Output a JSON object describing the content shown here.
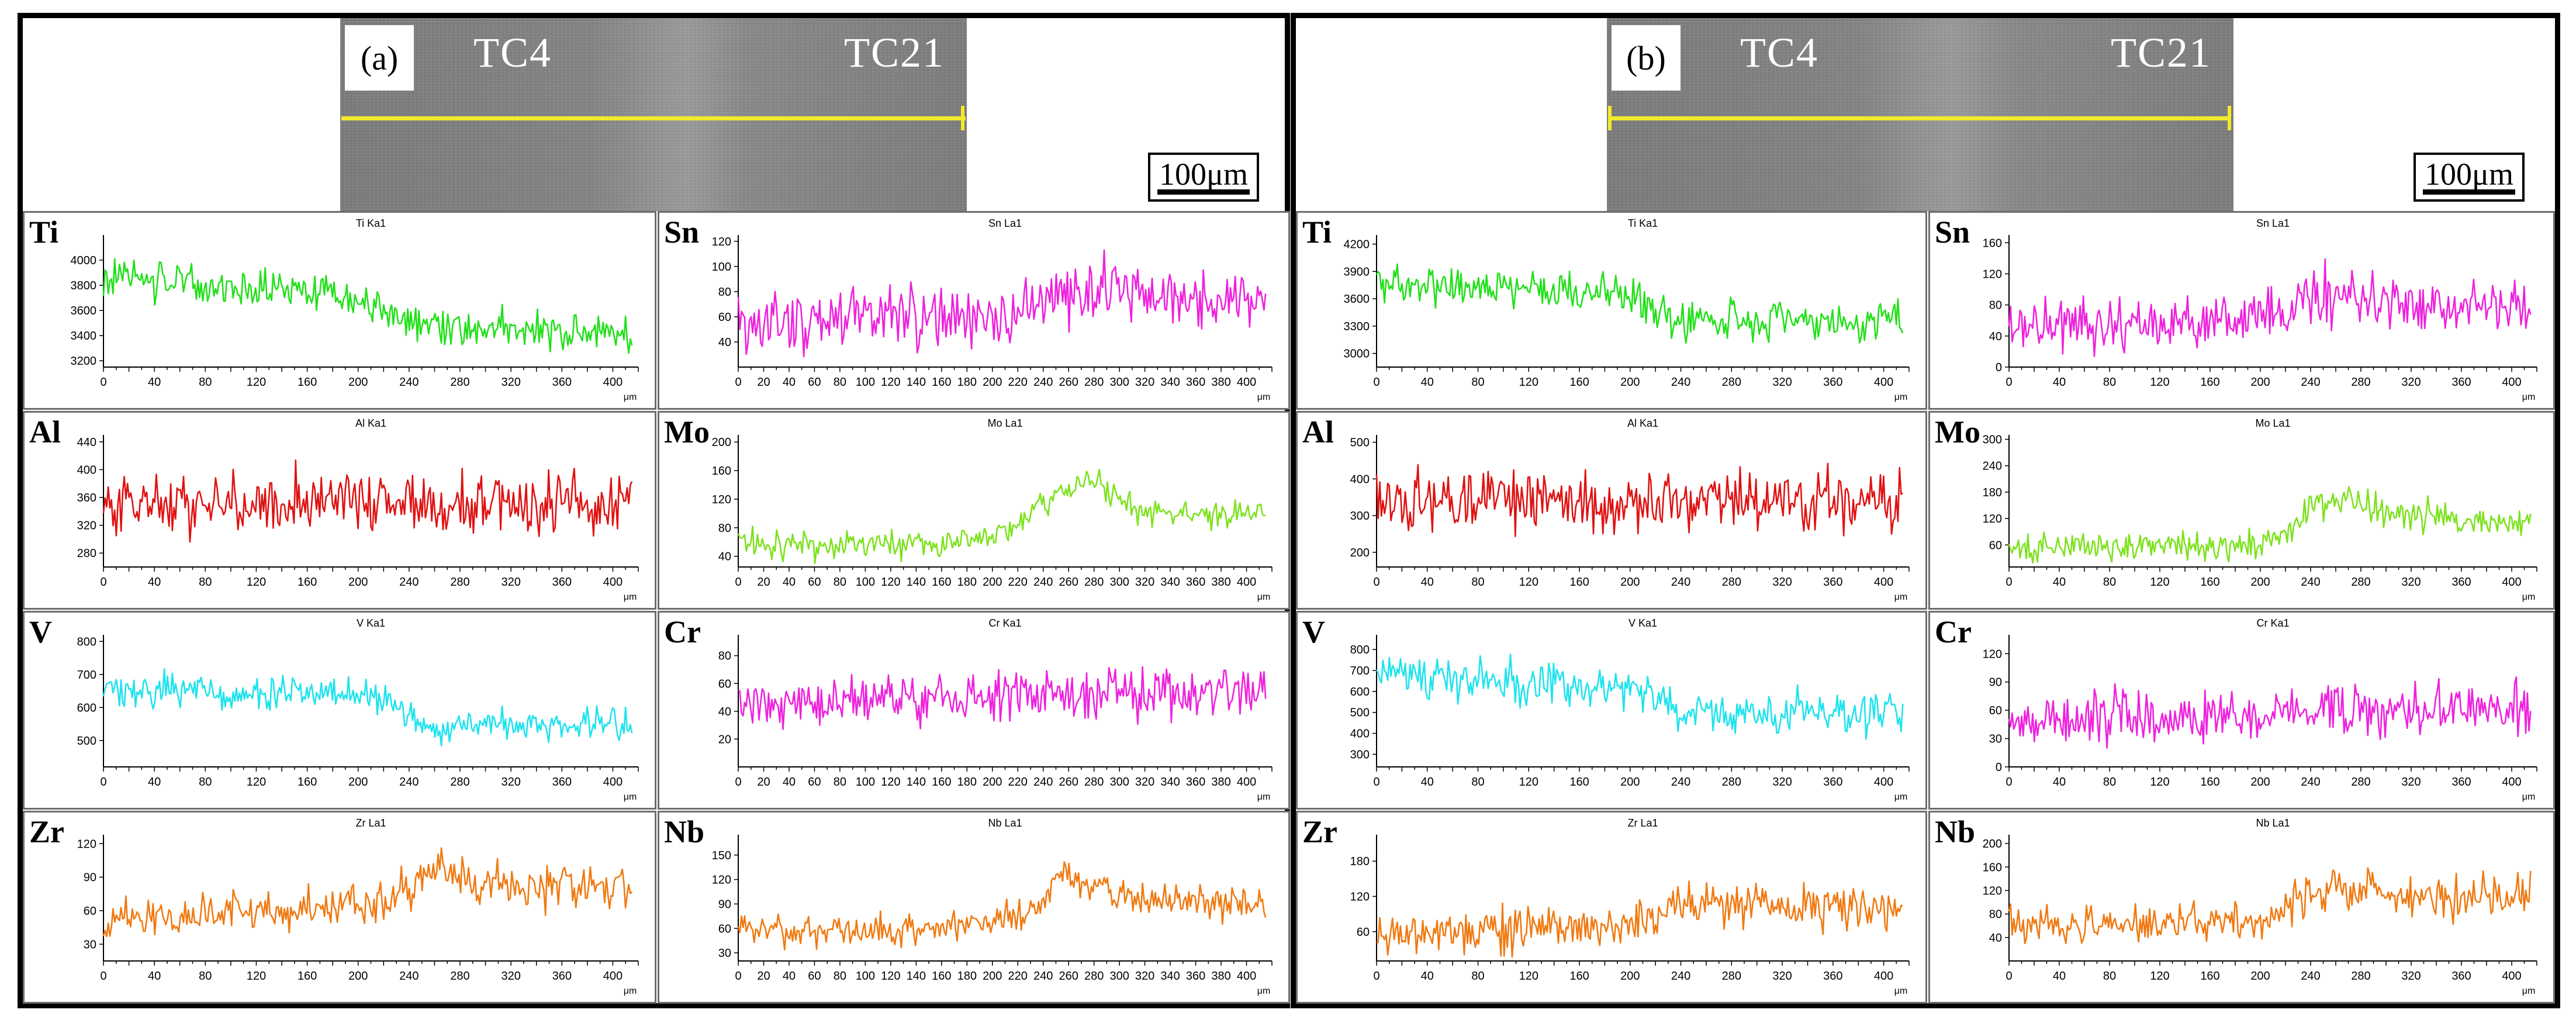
{
  "figure": {
    "panels": [
      {
        "id": "a",
        "panel_label": "(a)",
        "left_material": "TC4",
        "right_material": "TC21",
        "scale_bar": "100μm",
        "line_color": "#f2ea2b"
      },
      {
        "id": "b",
        "panel_label": "(b)",
        "left_material": "TC4",
        "right_material": "TC21",
        "scale_bar": "100μm",
        "line_color": "#f2ea2b"
      }
    ]
  },
  "chart_data": [
    {
      "type": "line",
      "panel": "a",
      "element": "Ti",
      "title": "Ti Ka1",
      "color": "#22e01a",
      "xlabel": "μm",
      "xlim": [
        0,
        420
      ],
      "ylim": [
        3150,
        4200
      ],
      "xticks": [
        0,
        40,
        80,
        120,
        160,
        200,
        240,
        280,
        320,
        360,
        400
      ],
      "yticks": [
        3200,
        3400,
        3600,
        3800,
        4000
      ],
      "x": [
        0,
        20,
        40,
        60,
        80,
        100,
        120,
        140,
        160,
        180,
        200,
        220,
        240,
        260,
        280,
        300,
        320,
        340,
        360,
        380,
        400,
        415
      ],
      "values": [
        3880,
        3870,
        3840,
        3820,
        3800,
        3790,
        3770,
        3760,
        3750,
        3730,
        3700,
        3600,
        3520,
        3470,
        3450,
        3440,
        3430,
        3430,
        3420,
        3420,
        3410,
        3410
      ],
      "noise": 130
    },
    {
      "type": "line",
      "panel": "a",
      "element": "Sn",
      "title": "Sn La1",
      "color": "#ee22dd",
      "xlabel": "μm",
      "xlim": [
        0,
        420
      ],
      "ylim": [
        20,
        125
      ],
      "xticks": [
        0,
        20,
        40,
        60,
        80,
        100,
        120,
        140,
        160,
        180,
        200,
        220,
        240,
        260,
        280,
        300,
        320,
        340,
        360,
        380,
        400
      ],
      "yticks": [
        40,
        60,
        80,
        100,
        120
      ],
      "x": [
        0,
        20,
        40,
        60,
        80,
        100,
        120,
        140,
        160,
        180,
        200,
        220,
        240,
        260,
        280,
        300,
        320,
        340,
        360,
        380,
        400,
        415
      ],
      "values": [
        55,
        55,
        55,
        56,
        57,
        57,
        58,
        58,
        59,
        60,
        62,
        65,
        70,
        75,
        82,
        80,
        76,
        74,
        72,
        71,
        70,
        70
      ],
      "noise": 20
    },
    {
      "type": "line",
      "panel": "a",
      "element": "Al",
      "title": "Al Ka1",
      "color": "#e01212",
      "xlabel": "μm",
      "xlim": [
        0,
        420
      ],
      "ylim": [
        260,
        450
      ],
      "xticks": [
        0,
        40,
        80,
        120,
        160,
        200,
        240,
        280,
        320,
        360,
        400
      ],
      "yticks": [
        280,
        320,
        360,
        400,
        440
      ],
      "x": [
        0,
        20,
        40,
        60,
        80,
        100,
        120,
        140,
        160,
        180,
        200,
        220,
        240,
        260,
        280,
        300,
        320,
        340,
        360,
        380,
        400,
        415
      ],
      "values": [
        350,
        350,
        350,
        350,
        350,
        350,
        350,
        350,
        350,
        350,
        350,
        350,
        350,
        350,
        350,
        350,
        350,
        350,
        350,
        350,
        350,
        350
      ],
      "noise": 38
    },
    {
      "type": "line",
      "panel": "a",
      "element": "Mo",
      "title": "Mo La1",
      "color": "#7de21e",
      "xlabel": "μm",
      "xlim": [
        0,
        420
      ],
      "ylim": [
        25,
        210
      ],
      "xticks": [
        0,
        20,
        40,
        60,
        80,
        100,
        120,
        140,
        160,
        180,
        200,
        220,
        240,
        260,
        280,
        300,
        320,
        340,
        360,
        380,
        400
      ],
      "yticks": [
        40,
        80,
        120,
        160,
        200
      ],
      "x": [
        0,
        20,
        40,
        60,
        80,
        100,
        120,
        140,
        160,
        180,
        200,
        220,
        240,
        260,
        280,
        300,
        320,
        340,
        360,
        380,
        400,
        415
      ],
      "values": [
        60,
        58,
        56,
        56,
        57,
        58,
        58,
        59,
        60,
        62,
        68,
        85,
        110,
        135,
        150,
        118,
        105,
        100,
        98,
        98,
        100,
        100
      ],
      "noise": 17
    },
    {
      "type": "line",
      "panel": "a",
      "element": "V",
      "title": "V Ka1",
      "color": "#1ee3ee",
      "xlabel": "μm",
      "xlim": [
        0,
        420
      ],
      "ylim": [
        420,
        820
      ],
      "xticks": [
        0,
        40,
        80,
        120,
        160,
        200,
        240,
        280,
        320,
        360,
        400
      ],
      "yticks": [
        500,
        600,
        700,
        800
      ],
      "x": [
        0,
        20,
        40,
        60,
        80,
        100,
        120,
        140,
        160,
        180,
        200,
        220,
        240,
        260,
        280,
        300,
        320,
        340,
        360,
        380,
        400,
        415
      ],
      "values": [
        660,
        655,
        650,
        648,
        645,
        642,
        640,
        640,
        638,
        636,
        630,
        610,
        575,
        530,
        545,
        550,
        552,
        552,
        550,
        550,
        550,
        548
      ],
      "noise": 45
    },
    {
      "type": "line",
      "panel": "a",
      "element": "Cr",
      "title": "Cr Ka1",
      "color": "#ee22dd",
      "xlabel": "μm",
      "xlim": [
        0,
        420
      ],
      "ylim": [
        0,
        95
      ],
      "xticks": [
        0,
        20,
        40,
        60,
        80,
        100,
        120,
        140,
        160,
        180,
        200,
        220,
        240,
        260,
        280,
        300,
        320,
        340,
        360,
        380,
        400
      ],
      "yticks": [
        20,
        40,
        60,
        80
      ],
      "x": [
        0,
        20,
        40,
        60,
        80,
        100,
        120,
        140,
        160,
        180,
        200,
        220,
        240,
        260,
        280,
        300,
        320,
        340,
        360,
        380,
        400,
        415
      ],
      "values": [
        45,
        46,
        46,
        47,
        47,
        48,
        48,
        48,
        49,
        49,
        50,
        51,
        52,
        53,
        54,
        54,
        54,
        54,
        54,
        54,
        54,
        54
      ],
      "noise": 15
    },
    {
      "type": "line",
      "panel": "a",
      "element": "Zr",
      "title": "Zr La1",
      "color": "#f07a12",
      "xlabel": "μm",
      "xlim": [
        0,
        420
      ],
      "ylim": [
        15,
        128
      ],
      "xticks": [
        0,
        40,
        80,
        120,
        160,
        200,
        240,
        280,
        320,
        360,
        400
      ],
      "yticks": [
        30,
        60,
        90,
        120
      ],
      "x": [
        0,
        20,
        40,
        60,
        80,
        100,
        120,
        140,
        160,
        180,
        200,
        220,
        240,
        260,
        280,
        300,
        320,
        340,
        360,
        380,
        400,
        415
      ],
      "values": [
        55,
        55,
        55,
        56,
        57,
        58,
        59,
        60,
        62,
        64,
        66,
        70,
        78,
        100,
        90,
        85,
        83,
        82,
        82,
        81,
        80,
        80
      ],
      "noise": 16
    },
    {
      "type": "line",
      "panel": "a",
      "element": "Nb",
      "title": "Nb La1",
      "color": "#f07a12",
      "xlabel": "μm",
      "xlim": [
        0,
        420
      ],
      "ylim": [
        20,
        175
      ],
      "xticks": [
        0,
        20,
        40,
        60,
        80,
        100,
        120,
        140,
        160,
        180,
        200,
        220,
        240,
        260,
        280,
        300,
        320,
        340,
        360,
        380,
        400
      ],
      "yticks": [
        30,
        60,
        90,
        120,
        150
      ],
      "x": [
        0,
        20,
        40,
        60,
        80,
        100,
        120,
        140,
        160,
        180,
        200,
        220,
        240,
        260,
        280,
        300,
        320,
        340,
        360,
        380,
        400,
        415
      ],
      "values": [
        60,
        58,
        57,
        57,
        57,
        58,
        58,
        59,
        60,
        62,
        66,
        75,
        95,
        130,
        110,
        98,
        95,
        93,
        93,
        92,
        92,
        92
      ],
      "noise": 17
    },
    {
      "type": "line",
      "panel": "b",
      "element": "Ti",
      "title": "Ti Ka1",
      "color": "#22e01a",
      "xlabel": "μm",
      "xlim": [
        0,
        420
      ],
      "ylim": [
        2850,
        4300
      ],
      "xticks": [
        0,
        40,
        80,
        120,
        160,
        200,
        240,
        280,
        320,
        360,
        400
      ],
      "yticks": [
        3000,
        3300,
        3600,
        3900,
        4200
      ],
      "x": [
        0,
        20,
        40,
        60,
        80,
        100,
        120,
        140,
        160,
        180,
        200,
        220,
        240,
        260,
        280,
        300,
        320,
        340,
        360,
        380,
        400,
        415
      ],
      "values": [
        3780,
        3760,
        3750,
        3740,
        3730,
        3720,
        3710,
        3700,
        3690,
        3680,
        3650,
        3500,
        3400,
        3380,
        3370,
        3360,
        3360,
        3350,
        3350,
        3340,
        3340,
        3340
      ],
      "noise": 180
    },
    {
      "type": "line",
      "panel": "b",
      "element": "Sn",
      "title": "Sn La1",
      "color": "#ee22dd",
      "xlabel": "μm",
      "xlim": [
        0,
        420
      ],
      "ylim": [
        0,
        170
      ],
      "xticks": [
        0,
        40,
        80,
        120,
        160,
        200,
        240,
        280,
        320,
        360,
        400
      ],
      "yticks": [
        0,
        40,
        80,
        120,
        160
      ],
      "x": [
        0,
        20,
        40,
        60,
        80,
        100,
        120,
        140,
        160,
        180,
        200,
        220,
        240,
        260,
        280,
        300,
        320,
        340,
        360,
        380,
        400,
        415
      ],
      "values": [
        55,
        55,
        55,
        56,
        56,
        57,
        58,
        58,
        60,
        62,
        66,
        76,
        88,
        92,
        90,
        86,
        84,
        82,
        80,
        80,
        78,
        78
      ],
      "noise": 32
    },
    {
      "type": "line",
      "panel": "b",
      "element": "Al",
      "title": "Al Ka1",
      "color": "#e01212",
      "xlabel": "μm",
      "xlim": [
        0,
        420
      ],
      "ylim": [
        160,
        520
      ],
      "xticks": [
        0,
        40,
        80,
        120,
        160,
        200,
        240,
        280,
        320,
        360,
        400
      ],
      "yticks": [
        200,
        300,
        400,
        500
      ],
      "x": [
        0,
        20,
        40,
        60,
        80,
        100,
        120,
        140,
        160,
        180,
        200,
        220,
        240,
        260,
        280,
        300,
        320,
        340,
        360,
        380,
        400,
        415
      ],
      "values": [
        340,
        340,
        340,
        340,
        340,
        340,
        340,
        340,
        340,
        340,
        340,
        340,
        340,
        340,
        340,
        340,
        340,
        340,
        340,
        340,
        340,
        340
      ],
      "noise": 70
    },
    {
      "type": "line",
      "panel": "b",
      "element": "Mo",
      "title": "Mo La1",
      "color": "#7de21e",
      "xlabel": "μm",
      "xlim": [
        0,
        420
      ],
      "ylim": [
        10,
        310
      ],
      "xticks": [
        0,
        40,
        80,
        120,
        160,
        200,
        240,
        280,
        320,
        360,
        400
      ],
      "yticks": [
        60,
        120,
        180,
        240,
        300
      ],
      "x": [
        0,
        20,
        40,
        60,
        80,
        100,
        120,
        140,
        160,
        180,
        200,
        220,
        240,
        260,
        280,
        300,
        320,
        340,
        360,
        380,
        400,
        415
      ],
      "values": [
        55,
        55,
        55,
        55,
        56,
        57,
        58,
        58,
        59,
        60,
        65,
        90,
        140,
        170,
        150,
        135,
        128,
        125,
        122,
        120,
        120,
        120
      ],
      "noise": 32
    },
    {
      "type": "line",
      "panel": "b",
      "element": "V",
      "title": "V Ka1",
      "color": "#1ee3ee",
      "xlabel": "μm",
      "xlim": [
        0,
        420
      ],
      "ylim": [
        240,
        870
      ],
      "xticks": [
        0,
        40,
        80,
        120,
        160,
        200,
        240,
        280,
        320,
        360,
        400
      ],
      "yticks": [
        300,
        400,
        500,
        600,
        700,
        800
      ],
      "x": [
        0,
        20,
        40,
        60,
        80,
        100,
        120,
        140,
        160,
        180,
        200,
        220,
        240,
        260,
        280,
        300,
        320,
        340,
        360,
        380,
        400,
        415
      ],
      "values": [
        680,
        670,
        660,
        655,
        650,
        645,
        640,
        640,
        635,
        630,
        620,
        560,
        510,
        500,
        500,
        495,
        495,
        495,
        490,
        490,
        490,
        490
      ],
      "noise": 85
    },
    {
      "type": "line",
      "panel": "b",
      "element": "Cr",
      "title": "Cr Ka1",
      "color": "#ee22dd",
      "xlabel": "μm",
      "xlim": [
        0,
        420
      ],
      "ylim": [
        0,
        140
      ],
      "xticks": [
        0,
        40,
        80,
        120,
        160,
        200,
        240,
        280,
        320,
        360,
        400
      ],
      "yticks": [
        0,
        30,
        60,
        90,
        120
      ],
      "x": [
        0,
        20,
        40,
        60,
        80,
        100,
        120,
        140,
        160,
        180,
        200,
        220,
        240,
        260,
        280,
        300,
        320,
        340,
        360,
        380,
        400,
        415
      ],
      "values": [
        50,
        50,
        51,
        51,
        52,
        52,
        53,
        53,
        54,
        54,
        55,
        56,
        58,
        60,
        60,
        60,
        60,
        60,
        60,
        60,
        60,
        60
      ],
      "noise": 24
    },
    {
      "type": "line",
      "panel": "b",
      "element": "Zr",
      "title": "Zr La1",
      "color": "#f07a12",
      "xlabel": "μm",
      "xlim": [
        0,
        420
      ],
      "ylim": [
        10,
        225
      ],
      "xticks": [
        0,
        40,
        80,
        120,
        160,
        200,
        240,
        280,
        320,
        360,
        400
      ],
      "yticks": [
        60,
        120,
        180
      ],
      "x": [
        0,
        20,
        40,
        60,
        80,
        100,
        120,
        140,
        160,
        180,
        200,
        220,
        240,
        260,
        280,
        300,
        320,
        340,
        360,
        380,
        400,
        415
      ],
      "values": [
        60,
        60,
        60,
        61,
        62,
        63,
        64,
        65,
        66,
        68,
        72,
        85,
        105,
        118,
        112,
        108,
        105,
        103,
        102,
        100,
        100,
        100
      ],
      "noise": 32
    },
    {
      "type": "line",
      "panel": "b",
      "element": "Nb",
      "title": "Nb La1",
      "color": "#f07a12",
      "xlabel": "μm",
      "xlim": [
        0,
        420
      ],
      "ylim": [
        0,
        215
      ],
      "xticks": [
        0,
        40,
        80,
        120,
        160,
        200,
        240,
        280,
        320,
        360,
        400
      ],
      "yticks": [
        40,
        80,
        120,
        160,
        200
      ],
      "x": [
        0,
        20,
        40,
        60,
        80,
        100,
        120,
        140,
        160,
        180,
        200,
        220,
        240,
        260,
        280,
        300,
        320,
        340,
        360,
        380,
        400,
        415
      ],
      "values": [
        65,
        64,
        63,
        63,
        63,
        64,
        64,
        65,
        66,
        68,
        72,
        90,
        115,
        125,
        120,
        115,
        112,
        110,
        110,
        108,
        108,
        108
      ],
      "noise": 30
    }
  ]
}
